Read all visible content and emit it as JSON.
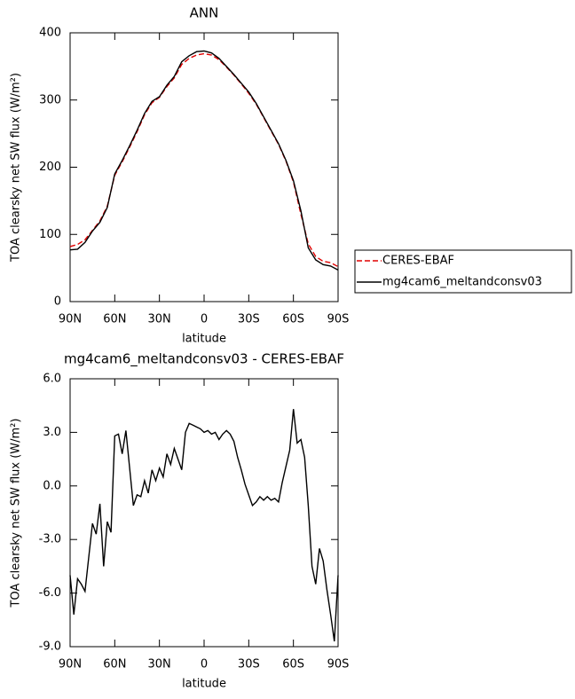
{
  "chart_data": [
    {
      "type": "line",
      "title": "ANN",
      "xlabel": "latitude",
      "ylabel": "TOA clearsky net SW flux (W/m²)",
      "x": [
        90,
        85,
        80,
        75,
        70,
        65,
        60,
        55,
        50,
        45,
        40,
        35,
        30,
        25,
        20,
        15,
        10,
        5,
        0,
        -5,
        -10,
        -15,
        -20,
        -25,
        -30,
        -35,
        -40,
        -45,
        -50,
        -55,
        -60,
        -65,
        -70,
        -75,
        -80,
        -85,
        -90
      ],
      "series": [
        {
          "name": "CERES-EBAF",
          "color": "#e00000",
          "dash": true,
          "values": [
            82,
            85,
            92,
            106,
            120,
            142,
            188,
            208,
            230,
            253,
            278,
            296,
            304,
            320,
            333,
            353,
            362,
            367,
            369,
            367,
            360,
            349,
            337,
            324,
            310,
            294,
            274,
            254,
            234,
            209,
            178,
            130,
            86,
            67,
            60,
            58,
            52
          ]
        },
        {
          "name": "mg4cam6_meltandconsv03",
          "color": "#000000",
          "dash": false,
          "values": [
            77,
            78,
            88,
            105,
            118,
            140,
            190,
            210,
            232,
            255,
            280,
            298,
            305,
            322,
            335,
            357,
            366,
            372,
            373,
            370,
            362,
            350,
            338,
            325,
            312,
            295,
            275,
            255,
            235,
            210,
            180,
            135,
            80,
            62,
            55,
            53,
            47
          ]
        }
      ],
      "xlim": [
        90,
        -90
      ],
      "xticks": [
        {
          "value": 90,
          "label": "90N"
        },
        {
          "value": 60,
          "label": "60N"
        },
        {
          "value": 30,
          "label": "30N"
        },
        0,
        {
          "value": -30,
          "label": "30S"
        },
        {
          "value": -60,
          "label": "60S"
        },
        {
          "value": -90,
          "label": "90S"
        }
      ],
      "ylim": [
        0,
        400
      ],
      "yticks": [
        0,
        100,
        200,
        300,
        400
      ],
      "legend": "right"
    },
    {
      "type": "line",
      "title": "mg4cam6_meltandconsv03 - CERES-EBAF",
      "xlabel": "latitude",
      "ylabel": "TOA clearsky net SW flux (W/m²)",
      "x": [
        90,
        87.5,
        85,
        82.5,
        80,
        77.5,
        75,
        72.5,
        70,
        67.5,
        65,
        62.5,
        60,
        57.5,
        55,
        52.5,
        50,
        47.5,
        45,
        42.5,
        40,
        37.5,
        35,
        32.5,
        30,
        27.5,
        25,
        22.5,
        20,
        17.5,
        15,
        12.5,
        10,
        7.5,
        5,
        2.5,
        0,
        -2.5,
        -5,
        -7.5,
        -10,
        -12.5,
        -15,
        -17.5,
        -20,
        -22.5,
        -25,
        -27.5,
        -30,
        -32.5,
        -35,
        -37.5,
        -40,
        -42.5,
        -45,
        -47.5,
        -50,
        -52.5,
        -55,
        -57.5,
        -60,
        -62.5,
        -65,
        -67.5,
        -70,
        -72.5,
        -75,
        -77.5,
        -80,
        -82.5,
        -85,
        -87.5,
        -90
      ],
      "series": [
        {
          "color": "#000000",
          "dash": false,
          "values": [
            -5.0,
            -7.2,
            -5.2,
            -5.5,
            -5.9,
            -4.0,
            -2.1,
            -2.7,
            -1.0,
            -4.5,
            -2.0,
            -2.6,
            2.8,
            2.9,
            1.8,
            3.1,
            1.0,
            -1.1,
            -0.5,
            -0.6,
            0.3,
            -0.4,
            0.9,
            0.3,
            1.0,
            0.5,
            1.8,
            1.2,
            2.1,
            1.5,
            0.9,
            3.0,
            3.5,
            3.4,
            3.3,
            3.2,
            3.0,
            3.1,
            2.9,
            3.0,
            2.6,
            2.9,
            3.1,
            2.9,
            2.5,
            1.6,
            0.9,
            0.1,
            -0.5,
            -1.1,
            -0.9,
            -0.6,
            -0.8,
            -0.6,
            -0.8,
            -0.7,
            -0.9,
            0.2,
            1.1,
            2.0,
            4.3,
            2.4,
            2.6,
            1.6,
            -1.1,
            -4.5,
            -5.5,
            -3.5,
            -4.2,
            -5.8,
            -7.2,
            -8.7,
            -5.0
          ]
        }
      ],
      "xlim": [
        90,
        -90
      ],
      "xticks": [
        {
          "value": 90,
          "label": "90N"
        },
        {
          "value": 60,
          "label": "60N"
        },
        {
          "value": 30,
          "label": "30N"
        },
        0,
        {
          "value": -30,
          "label": "30S"
        },
        {
          "value": -60,
          "label": "60S"
        },
        {
          "value": -90,
          "label": "90S"
        }
      ],
      "ylim": [
        -9,
        6
      ],
      "yticks": [
        {
          "value": -9,
          "label": "-9.0"
        },
        {
          "value": -6,
          "label": "-6.0"
        },
        {
          "value": -3,
          "label": "-3.0"
        },
        {
          "value": 0,
          "label": "0.0"
        },
        {
          "value": 3,
          "label": "3.0"
        },
        {
          "value": 6,
          "label": "6.0"
        }
      ]
    }
  ]
}
